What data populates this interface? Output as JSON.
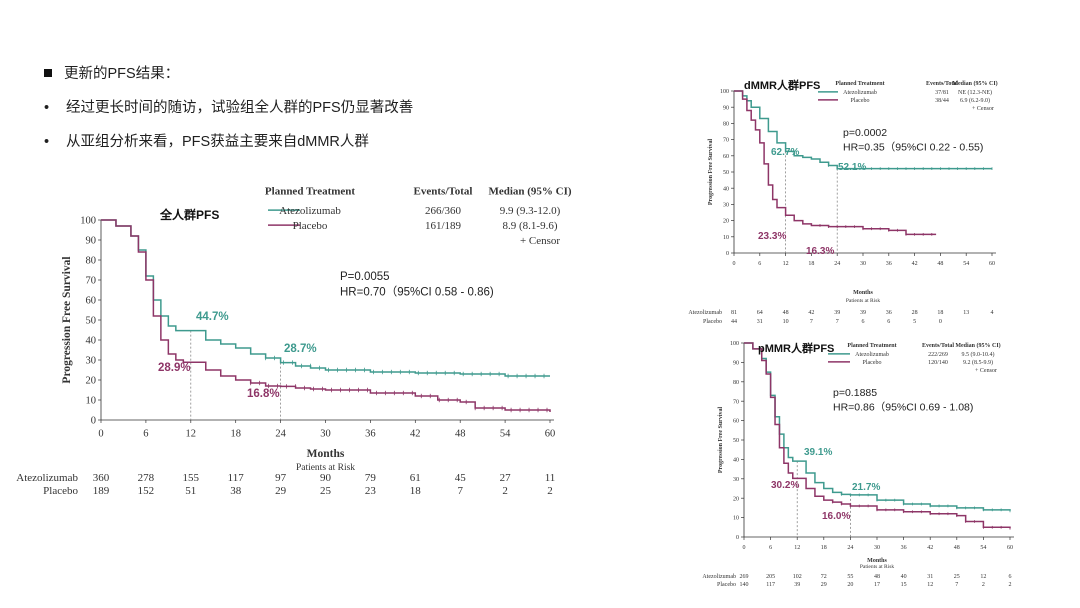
{
  "slide": {
    "heading": "更新的PFS结果：",
    "bullets": [
      "经过更长时间的随访，试验组全人群的PFS仍显著改善",
      "从亚组分析来看，PFS获益主要来自dMMR人群"
    ]
  },
  "colors": {
    "atezolizumab": "#3e9a8e",
    "placebo": "#8e3567",
    "axis": "#333333"
  },
  "chart_data": [
    {
      "id": "main",
      "type": "line",
      "title": "全人群PFS",
      "xlabel": "Months",
      "ylabel": "Progression Free Survival",
      "xticks": [
        0,
        6,
        12,
        18,
        24,
        30,
        36,
        42,
        48,
        54,
        60
      ],
      "yticks": [
        0,
        10,
        20,
        30,
        40,
        50,
        60,
        70,
        80,
        90,
        100
      ],
      "xlim": [
        0,
        60
      ],
      "ylim": [
        0,
        100
      ],
      "legend_header": [
        "Planned Treatment",
        "Events/Total",
        "Median (95% CI)"
      ],
      "censor_label": "+ Censor",
      "series": [
        {
          "name": "Atezolizumab",
          "events_total": "266/360",
          "median": "9.9 (9.3-12.0)",
          "x": [
            0,
            2,
            4,
            5,
            6,
            7,
            8,
            9,
            10,
            11,
            12,
            14,
            16,
            18,
            20,
            22,
            24,
            26,
            28,
            30,
            36,
            42,
            48,
            54,
            60
          ],
          "y": [
            100,
            97,
            92,
            85,
            72,
            60,
            52,
            47,
            44.7,
            44.7,
            44.7,
            40,
            38,
            36,
            33,
            31,
            28.7,
            27,
            26,
            25,
            24,
            23.5,
            23,
            22,
            22
          ]
        },
        {
          "name": "Placebo",
          "events_total": "161/189",
          "median": "8.9 (8.1-9.6)",
          "x": [
            0,
            2,
            4,
            5,
            6,
            7,
            8,
            9,
            10,
            11,
            12,
            14,
            16,
            18,
            20,
            22,
            24,
            26,
            28,
            30,
            36,
            42,
            45,
            48,
            50,
            54,
            60
          ],
          "y": [
            100,
            97,
            92,
            84,
            70,
            52,
            40,
            33,
            30,
            28.9,
            28.9,
            25,
            22,
            20,
            18.5,
            17,
            16.8,
            16,
            15.5,
            15,
            13.5,
            12,
            10,
            9,
            6,
            5,
            4
          ]
        }
      ],
      "annotations": {
        "atezo_12": "44.7%",
        "atezo_24": "28.7%",
        "placebo_12": "28.9%",
        "placebo_24": "16.8%",
        "p_value": "P=0.0055",
        "hr": "HR=0.70（95%CI 0.58 - 0.86)"
      },
      "risk_table": {
        "label": "Patients at Risk",
        "rows": [
          {
            "name": "Atezolizumab",
            "values": [
              "360",
              "278",
              "155",
              "117",
              "97",
              "90",
              "79",
              "61",
              "45",
              "27",
              "11"
            ]
          },
          {
            "name": "Placebo",
            "values": [
              "189",
              "152",
              "51",
              "38",
              "29",
              "25",
              "23",
              "18",
              "7",
              "2",
              "2"
            ]
          }
        ]
      }
    },
    {
      "id": "dmmr",
      "type": "line",
      "title": "dMMR人群PFS",
      "xlabel": "Months",
      "ylabel": "Progression Free Survival",
      "xticks": [
        0,
        6,
        12,
        18,
        24,
        30,
        36,
        42,
        48,
        54,
        60
      ],
      "yticks": [
        0,
        10,
        20,
        30,
        40,
        50,
        60,
        70,
        80,
        90,
        100
      ],
      "xlim": [
        0,
        60
      ],
      "ylim": [
        0,
        100
      ],
      "legend_header": [
        "Planned Treatment",
        "Events/Total",
        "Median (95% CI)"
      ],
      "censor_label": "+ Censor",
      "series": [
        {
          "name": "Atezolizumab",
          "events_total": "37/81",
          "median": "NE (12.3-NE)",
          "x": [
            0,
            2,
            3,
            4,
            6,
            8,
            10,
            12,
            14,
            16,
            18,
            20,
            22,
            24,
            30,
            36,
            42,
            48,
            54,
            60
          ],
          "y": [
            100,
            97,
            94,
            90,
            83,
            75,
            68,
            62.7,
            60,
            59,
            58,
            56,
            54,
            52.1,
            52.1,
            52.1,
            52.1,
            52.1,
            52.1,
            52.1
          ]
        },
        {
          "name": "Placebo",
          "events_total": "38/44",
          "median": "6.9 (6.2-9.0)",
          "x": [
            0,
            2,
            3,
            4,
            5,
            6,
            7,
            8,
            9,
            10,
            12,
            14,
            16,
            18,
            20,
            22,
            24,
            30,
            36,
            40,
            42,
            47
          ],
          "y": [
            100,
            95,
            88,
            82,
            76,
            68,
            55,
            42,
            33,
            28,
            23.3,
            20,
            18,
            17,
            17,
            16.3,
            16.3,
            15,
            14,
            11.5,
            11.5,
            11.5
          ]
        }
      ],
      "annotations": {
        "atezo_12": "62.7%",
        "atezo_24": "52.1%",
        "placebo_12": "23.3%",
        "placebo_24": "16.3%",
        "p_value": "p=0.0002",
        "hr": "HR=0.35（95%CI 0.22 - 0.55)"
      },
      "risk_table": {
        "label": "Patients at Risk",
        "rows": [
          {
            "name": "Atezolizumab",
            "values": [
              "81",
              "64",
              "48",
              "42",
              "39",
              "39",
              "36",
              "28",
              "18",
              "13",
              "4"
            ]
          },
          {
            "name": "Placebo",
            "values": [
              "44",
              "31",
              "10",
              "7",
              "7",
              "6",
              "6",
              "5",
              "0",
              "",
              ""
            ]
          }
        ]
      }
    },
    {
      "id": "pmmr",
      "type": "line",
      "title": "pMMR人群PFS",
      "xlabel": "Months",
      "ylabel": "Progression Free Survival",
      "xticks": [
        0,
        6,
        12,
        18,
        24,
        30,
        36,
        42,
        48,
        54,
        60
      ],
      "yticks": [
        0,
        10,
        20,
        30,
        40,
        50,
        60,
        70,
        80,
        90,
        100
      ],
      "xlim": [
        0,
        60
      ],
      "ylim": [
        0,
        100
      ],
      "legend_header": [
        "Planned Treatment",
        "Events/Total",
        "Median (95% CI)"
      ],
      "censor_label": "+ Censor",
      "series": [
        {
          "name": "Atezolizumab",
          "events_total": "222/269",
          "median": "9.5 (9.0-10.4)",
          "x": [
            0,
            2,
            4,
            5,
            6,
            7,
            8,
            9,
            10,
            11,
            12,
            14,
            16,
            18,
            20,
            22,
            24,
            30,
            36,
            42,
            48,
            54,
            60
          ],
          "y": [
            100,
            97,
            92,
            85,
            73,
            62,
            53,
            46,
            41,
            39.1,
            39.1,
            33,
            28,
            25,
            23,
            22,
            21.7,
            19,
            17,
            16,
            15,
            14,
            13.5
          ]
        },
        {
          "name": "Placebo",
          "events_total": "120/140",
          "median": "9.2 (8.5-9.9)",
          "x": [
            0,
            2,
            4,
            5,
            6,
            7,
            8,
            9,
            10,
            11,
            12,
            14,
            16,
            18,
            20,
            22,
            24,
            30,
            36,
            42,
            48,
            50,
            54,
            60
          ],
          "y": [
            100,
            97,
            91,
            84,
            72,
            58,
            46,
            38,
            33,
            30.2,
            30.2,
            25,
            21,
            19,
            18,
            17,
            16,
            14,
            13,
            12,
            11,
            8,
            5,
            4.5
          ]
        }
      ],
      "annotations": {
        "atezo_12": "39.1%",
        "atezo_24": "21.7%",
        "placebo_12": "30.2%",
        "placebo_24": "16.0%",
        "p_value": "p=0.1885",
        "hr": "HR=0.86（95%CI 0.69 - 1.08)"
      },
      "risk_table": {
        "label": "Patients at Risk",
        "rows": [
          {
            "name": "Atezolizumab",
            "values": [
              "269",
              "205",
              "102",
              "72",
              "55",
              "48",
              "40",
              "31",
              "25",
              "12",
              "6"
            ]
          },
          {
            "name": "Placebo",
            "values": [
              "140",
              "117",
              "39",
              "29",
              "20",
              "17",
              "15",
              "12",
              "7",
              "2",
              "2"
            ]
          }
        ]
      }
    }
  ]
}
